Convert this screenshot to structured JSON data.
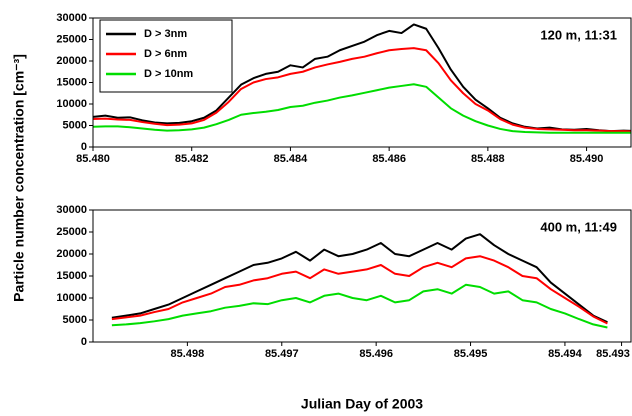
{
  "chart_data": [
    {
      "type": "line",
      "annotation": "120 m, 11:31",
      "ylabel": "Particle number concentration [cm⁻³]",
      "xlim": [
        85.48,
        85.4909
      ],
      "ylim": [
        0,
        30000
      ],
      "xticks": [
        {
          "value": 85.48,
          "label": "85.480"
        },
        85.482,
        85.484,
        85.486,
        85.488,
        {
          "value": 85.49,
          "label": "85.490"
        }
      ],
      "yticks": [
        0,
        5000,
        10000,
        15000,
        20000,
        25000,
        30000
      ],
      "legend": "upper left",
      "x": [
        85.48,
        85.48025,
        85.4805,
        85.48075,
        85.481,
        85.48125,
        85.4815,
        85.48175,
        85.482,
        85.48225,
        85.4825,
        85.48275,
        85.483,
        85.48325,
        85.4835,
        85.48375,
        85.484,
        85.48425,
        85.4845,
        85.48475,
        85.485,
        85.48525,
        85.4855,
        85.48575,
        85.486,
        85.48625,
        85.4865,
        85.48675,
        85.487,
        85.48725,
        85.4875,
        85.48775,
        85.488,
        85.48825,
        85.4885,
        85.48875,
        85.489,
        85.48925,
        85.4895,
        85.48975,
        85.49,
        85.49025,
        85.4905,
        85.49075,
        85.491
      ],
      "series": [
        {
          "name": "D >  3nm",
          "color": "#000000",
          "values": [
            7000,
            7300,
            6800,
            6900,
            6200,
            5700,
            5500,
            5600,
            6000,
            6800,
            8500,
            11500,
            14500,
            16000,
            17000,
            17500,
            19000,
            18500,
            20500,
            21000,
            22500,
            23500,
            24500,
            26000,
            27000,
            26500,
            28500,
            27500,
            23000,
            18000,
            14000,
            11000,
            9000,
            6800,
            5500,
            4700,
            4300,
            4500,
            4100,
            4000,
            4200,
            3900,
            3700,
            3800,
            3700
          ]
        },
        {
          "name": "D >  6nm",
          "color": "#ff0000",
          "values": [
            6500,
            6600,
            6400,
            6300,
            5800,
            5400,
            5100,
            5200,
            5500,
            6300,
            8000,
            10500,
            13500,
            15000,
            15800,
            16200,
            17000,
            17500,
            18500,
            19200,
            19800,
            20500,
            21000,
            21800,
            22500,
            22800,
            23000,
            22500,
            19500,
            15500,
            12500,
            10000,
            8500,
            6500,
            5200,
            4500,
            4200,
            4100,
            4000,
            3900,
            3900,
            3800,
            3700,
            3700,
            3600
          ]
        },
        {
          "name": "D > 10nm",
          "color": "#00dd00",
          "values": [
            4700,
            4800,
            4800,
            4600,
            4300,
            4000,
            3800,
            3900,
            4100,
            4500,
            5300,
            6300,
            7500,
            7900,
            8200,
            8600,
            9300,
            9600,
            10300,
            10800,
            11500,
            12000,
            12600,
            13200,
            13800,
            14200,
            14600,
            14000,
            11500,
            9000,
            7300,
            6000,
            5000,
            4200,
            3700,
            3500,
            3400,
            3300,
            3300,
            3300,
            3300,
            3300,
            3300,
            3300,
            3300
          ]
        }
      ]
    },
    {
      "type": "line",
      "annotation": "400 m, 11:49",
      "xlabel": "Julian Day of 2003",
      "xlim": [
        85.499,
        85.4933
      ],
      "ylim": [
        0,
        30000
      ],
      "xticks": [
        85.498,
        85.497,
        85.496,
        85.495,
        85.494,
        {
          "value": 85.4934,
          "label": "85.493"
        }
      ],
      "yticks": [
        0,
        5000,
        10000,
        15000,
        20000,
        25000,
        30000
      ],
      "x": [
        85.4988,
        85.49865,
        85.4985,
        85.49835,
        85.4982,
        85.49805,
        85.4979,
        85.49775,
        85.4976,
        85.49745,
        85.4973,
        85.49715,
        85.497,
        85.49685,
        85.4967,
        85.49655,
        85.4964,
        85.49625,
        85.4961,
        85.49595,
        85.4958,
        85.49565,
        85.4955,
        85.49535,
        85.4952,
        85.49505,
        85.4949,
        85.49475,
        85.4946,
        85.49445,
        85.4943,
        85.49415,
        85.494,
        85.49385,
        85.4937,
        85.49355
      ],
      "series": [
        {
          "color": "#000000",
          "values": [
            5500,
            6000,
            6500,
            7500,
            8500,
            10000,
            11500,
            13000,
            14500,
            16000,
            17500,
            18000,
            19000,
            20500,
            18500,
            21000,
            19500,
            20000,
            21000,
            22500,
            20000,
            19500,
            21000,
            22500,
            21000,
            23500,
            24500,
            22000,
            20000,
            18500,
            17000,
            13500,
            11000,
            8500,
            6000,
            4500
          ]
        },
        {
          "color": "#ff0000",
          "values": [
            5200,
            5600,
            6000,
            6800,
            7500,
            9000,
            10000,
            11000,
            12500,
            13000,
            14000,
            14500,
            15500,
            16000,
            14500,
            16500,
            15500,
            16000,
            16500,
            17500,
            15500,
            15000,
            17000,
            18000,
            17000,
            19000,
            19500,
            18500,
            17000,
            15000,
            14500,
            12000,
            10000,
            8000,
            5800,
            4200
          ]
        },
        {
          "color": "#00dd00",
          "values": [
            3800,
            4000,
            4300,
            4700,
            5200,
            6000,
            6500,
            7000,
            7800,
            8200,
            8800,
            8600,
            9500,
            10000,
            9000,
            10500,
            11000,
            10000,
            9500,
            10500,
            9000,
            9500,
            11500,
            12000,
            11000,
            13000,
            12500,
            11000,
            11500,
            9500,
            9000,
            7500,
            6500,
            5200,
            4000,
            3300
          ]
        }
      ]
    }
  ]
}
